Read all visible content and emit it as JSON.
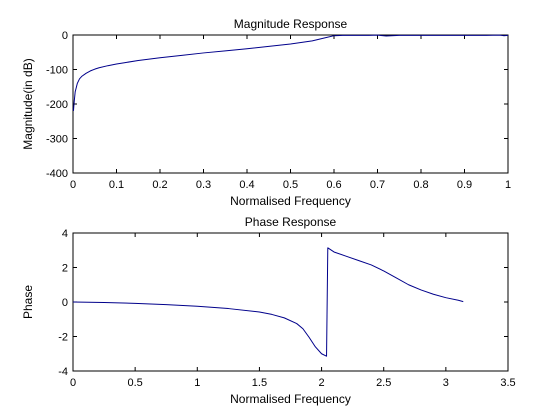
{
  "window": {
    "background": "#ffffff"
  },
  "chart_data": [
    {
      "type": "line",
      "title": "Magnitude Response",
      "xlabel": "Normalised Frequency",
      "ylabel": "Magnitude(in dB)",
      "xlim": [
        0,
        1
      ],
      "ylim": [
        -400,
        0
      ],
      "xticks": [
        0,
        0.1,
        0.2,
        0.3,
        0.4,
        0.5,
        0.6,
        0.7,
        0.8,
        0.9,
        1
      ],
      "xtick_labels": [
        "0",
        "0.1",
        "0.2",
        "0.3",
        "0.4",
        "0.5",
        "0.6",
        "0.7",
        "0.8",
        "0.9",
        "1"
      ],
      "yticks": [
        0,
        -100,
        -200,
        -300,
        -400
      ],
      "ytick_labels": [
        "0",
        "-100",
        "-200",
        "-300",
        "-400"
      ],
      "grid": false,
      "legend": "none",
      "series": [
        {
          "color": "#00008b",
          "x": [
            0.001,
            0.003,
            0.005,
            0.008,
            0.01,
            0.015,
            0.02,
            0.03,
            0.04,
            0.05,
            0.06,
            0.08,
            0.1,
            0.12,
            0.15,
            0.2,
            0.25,
            0.3,
            0.35,
            0.4,
            0.45,
            0.5,
            0.55,
            0.58,
            0.6,
            0.62,
            0.65,
            0.68,
            0.7,
            0.72,
            0.75,
            0.8,
            0.85,
            0.9,
            0.95,
            0.98,
            0.99,
            1.0
          ],
          "y": [
            -220,
            -190,
            -165,
            -150,
            -140,
            -127,
            -120,
            -111,
            -104,
            -99,
            -95,
            -89,
            -84,
            -80,
            -74,
            -66,
            -59,
            -52,
            -46,
            -40,
            -33,
            -26,
            -17,
            -8,
            -2,
            -1,
            -1,
            -1,
            -0.5,
            -3,
            -1,
            -1,
            -1,
            -1,
            -1,
            -0.5,
            -2,
            -1
          ]
        }
      ]
    },
    {
      "type": "line",
      "title": "Phase Response",
      "xlabel": "Normalised Frequency",
      "ylabel": "Phase",
      "xlim": [
        0,
        3.5
      ],
      "ylim": [
        -4,
        4
      ],
      "xticks": [
        0,
        0.5,
        1,
        1.5,
        2,
        2.5,
        3,
        3.5
      ],
      "xtick_labels": [
        "0",
        "0.5",
        "1",
        "1.5",
        "2",
        "2.5",
        "3",
        "3.5"
      ],
      "yticks": [
        4,
        2,
        0,
        -2,
        -4
      ],
      "ytick_labels": [
        "4",
        "2",
        "0",
        "-2",
        "-4"
      ],
      "grid": false,
      "legend": "none",
      "series": [
        {
          "color": "#00008b",
          "x": [
            0,
            0.25,
            0.5,
            0.75,
            1.0,
            1.25,
            1.5,
            1.6,
            1.7,
            1.8,
            1.85,
            1.9,
            1.95,
            2.0,
            2.04,
            2.05,
            2.1,
            2.2,
            2.3,
            2.4,
            2.5,
            2.6,
            2.7,
            2.8,
            2.9,
            3.0,
            3.1,
            3.14
          ],
          "y": [
            0,
            -0.03,
            -0.08,
            -0.15,
            -0.25,
            -0.38,
            -0.58,
            -0.72,
            -0.92,
            -1.25,
            -1.55,
            -2.05,
            -2.6,
            -3.0,
            -3.14,
            3.14,
            2.9,
            2.65,
            2.4,
            2.15,
            1.8,
            1.4,
            1.0,
            0.7,
            0.45,
            0.25,
            0.1,
            0.02
          ]
        }
      ]
    }
  ]
}
